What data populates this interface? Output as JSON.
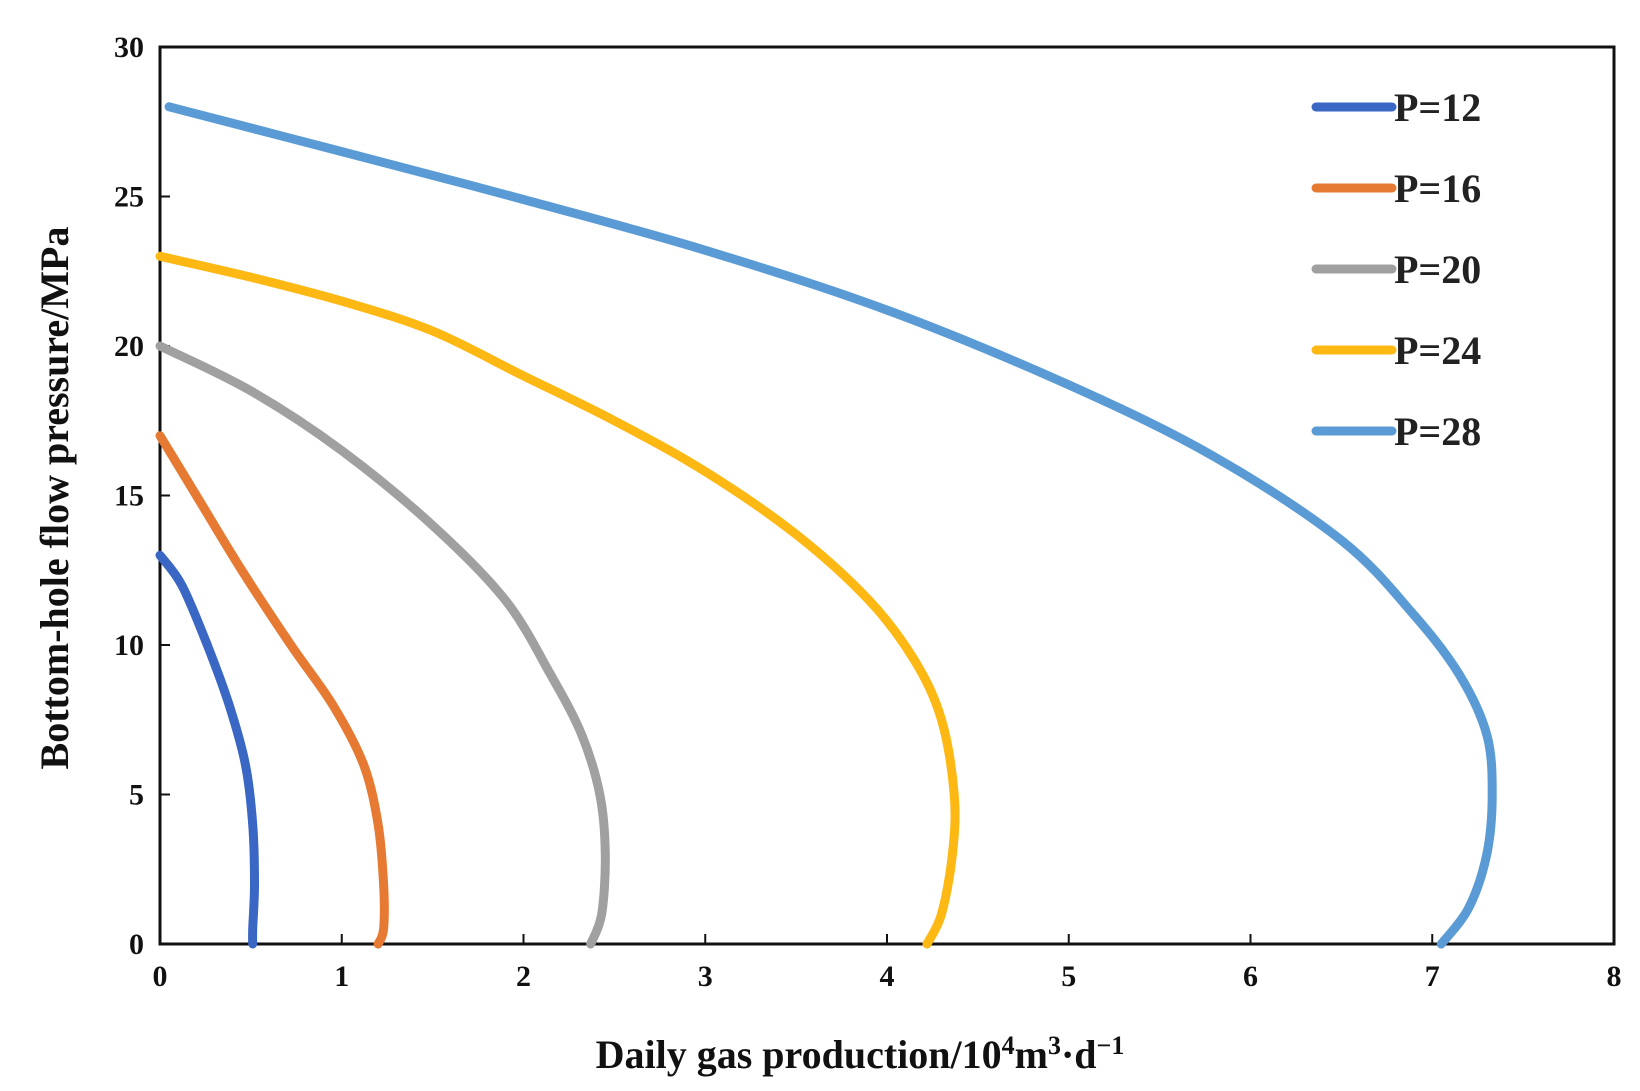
{
  "chart_data": {
    "type": "line",
    "title": "",
    "xlabel_main": "Daily gas production/10",
    "xlabel_sup1": "4",
    "xlabel_mid": "m",
    "xlabel_sup2": "3",
    "xlabel_mid2": "·d",
    "xlabel_sup3": "−1",
    "ylabel": "Bottom-hole flow pressure/MPa",
    "xlim": [
      0,
      8
    ],
    "ylim": [
      0,
      30
    ],
    "x_ticks": [
      "0",
      "1",
      "2",
      "3",
      "4",
      "5",
      "6",
      "7",
      "8"
    ],
    "y_ticks": [
      "0",
      "5",
      "10",
      "15",
      "20",
      "25",
      "30"
    ],
    "grid": false,
    "legend_position": "top-right",
    "series": [
      {
        "name": "P=12",
        "color": "#3a66c4",
        "points": [
          [
            0.0,
            13.0
          ],
          [
            0.12,
            12.0
          ],
          [
            0.26,
            10.0
          ],
          [
            0.38,
            8.0
          ],
          [
            0.47,
            6.0
          ],
          [
            0.51,
            4.0
          ],
          [
            0.52,
            2.0
          ],
          [
            0.51,
            0.5
          ],
          [
            0.51,
            0.0
          ]
        ]
      },
      {
        "name": "P=16",
        "color": "#e67a32",
        "points": [
          [
            0.0,
            17.0
          ],
          [
            0.2,
            15.0
          ],
          [
            0.45,
            12.5
          ],
          [
            0.72,
            10.0
          ],
          [
            0.95,
            8.0
          ],
          [
            1.12,
            6.0
          ],
          [
            1.2,
            4.0
          ],
          [
            1.23,
            2.0
          ],
          [
            1.23,
            0.5
          ],
          [
            1.2,
            0.0
          ]
        ]
      },
      {
        "name": "P=20",
        "color": "#a0a0a0",
        "points": [
          [
            0.0,
            20.0
          ],
          [
            0.5,
            18.5
          ],
          [
            1.0,
            16.5
          ],
          [
            1.5,
            14.0
          ],
          [
            1.9,
            11.5
          ],
          [
            2.15,
            9.0
          ],
          [
            2.32,
            7.0
          ],
          [
            2.42,
            5.0
          ],
          [
            2.45,
            3.0
          ],
          [
            2.43,
            1.0
          ],
          [
            2.37,
            0.0
          ]
        ]
      },
      {
        "name": "P=24",
        "color": "#fdb813",
        "points": [
          [
            0.0,
            23.0
          ],
          [
            0.5,
            22.3
          ],
          [
            1.0,
            21.5
          ],
          [
            1.5,
            20.5
          ],
          [
            2.0,
            19.0
          ],
          [
            2.5,
            17.5
          ],
          [
            3.0,
            15.8
          ],
          [
            3.5,
            13.7
          ],
          [
            3.9,
            11.5
          ],
          [
            4.15,
            9.5
          ],
          [
            4.3,
            7.5
          ],
          [
            4.37,
            5.0
          ],
          [
            4.36,
            3.0
          ],
          [
            4.3,
            1.0
          ],
          [
            4.22,
            0.0
          ]
        ]
      },
      {
        "name": "P=28",
        "color": "#5b9bd5",
        "points": [
          [
            0.05,
            28.0
          ],
          [
            1.0,
            26.5
          ],
          [
            2.0,
            24.9
          ],
          [
            3.0,
            23.2
          ],
          [
            4.0,
            21.2
          ],
          [
            5.0,
            18.7
          ],
          [
            5.8,
            16.3
          ],
          [
            6.5,
            13.5
          ],
          [
            6.9,
            11.0
          ],
          [
            7.15,
            9.0
          ],
          [
            7.3,
            7.0
          ],
          [
            7.33,
            5.0
          ],
          [
            7.3,
            3.0
          ],
          [
            7.2,
            1.2
          ],
          [
            7.05,
            0.0
          ]
        ]
      }
    ]
  }
}
